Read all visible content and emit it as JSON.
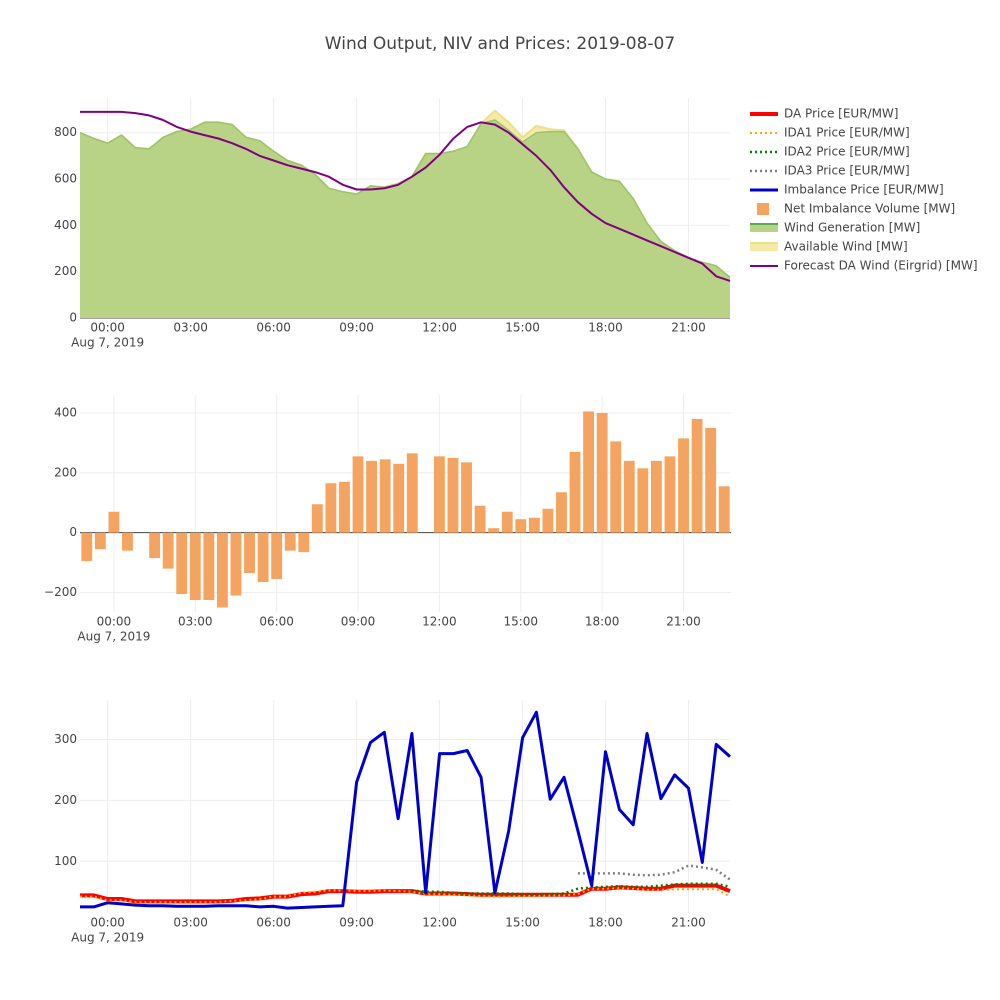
{
  "title": "Wind Output, NIV and Prices: 2019-08-07",
  "chart_data": [
    {
      "type": "area",
      "x": [
        "23:00",
        "23:30",
        "00:00",
        "00:30",
        "01:00",
        "01:30",
        "02:00",
        "02:30",
        "03:00",
        "03:30",
        "04:00",
        "04:30",
        "05:00",
        "05:30",
        "06:00",
        "06:30",
        "07:00",
        "07:30",
        "08:00",
        "08:30",
        "09:00",
        "09:30",
        "10:00",
        "10:30",
        "11:00",
        "11:30",
        "12:00",
        "12:30",
        "13:00",
        "13:30",
        "14:00",
        "14:30",
        "15:00",
        "15:30",
        "16:00",
        "16:30",
        "17:00",
        "17:30",
        "18:00",
        "18:30",
        "19:00",
        "19:30",
        "20:00",
        "20:30",
        "21:00",
        "21:30",
        "22:00",
        "22:30"
      ],
      "xticks": [
        "00:00",
        "03:00",
        "06:00",
        "09:00",
        "12:00",
        "15:00",
        "18:00",
        "21:00"
      ],
      "x_sublabel": "Aug 7, 2019",
      "ylim": [
        0,
        950
      ],
      "yticks": [
        0,
        200,
        400,
        600,
        800
      ],
      "grid": true,
      "series": [
        {
          "name": "Available Wind [MW]",
          "color": "#ece08c",
          "fill_color": "#f3eaa6",
          "fill": true,
          "width": 2,
          "values": [
            800,
            775,
            755,
            790,
            735,
            730,
            780,
            805,
            815,
            845,
            845,
            835,
            780,
            765,
            720,
            680,
            660,
            620,
            560,
            545,
            535,
            570,
            565,
            580,
            610,
            710,
            710,
            720,
            740,
            840,
            895,
            845,
            780,
            830,
            815,
            810,
            730,
            630,
            600,
            590,
            515,
            410,
            330,
            290,
            260,
            240,
            225,
            175
          ]
        },
        {
          "name": "Wind Generation [MW]",
          "color": "#9cc46c",
          "fill_color": "#b8d385",
          "fill": true,
          "width": 1.5,
          "legend_color": "#5aa850",
          "values": [
            800,
            775,
            755,
            790,
            735,
            730,
            780,
            805,
            815,
            845,
            845,
            835,
            780,
            765,
            720,
            680,
            660,
            620,
            560,
            545,
            535,
            570,
            565,
            580,
            610,
            710,
            710,
            720,
            740,
            840,
            855,
            810,
            760,
            800,
            805,
            805,
            730,
            630,
            600,
            590,
            515,
            410,
            330,
            290,
            260,
            240,
            225,
            175
          ]
        },
        {
          "name": "Forecast DA Wind (Eirgrid) [MW]",
          "color": "#800080",
          "width": 2,
          "values": [
            890,
            890,
            890,
            890,
            885,
            875,
            855,
            825,
            805,
            790,
            775,
            755,
            730,
            700,
            680,
            660,
            645,
            630,
            610,
            575,
            555,
            555,
            560,
            575,
            610,
            650,
            705,
            775,
            825,
            845,
            835,
            800,
            750,
            700,
            640,
            565,
            500,
            450,
            410,
            385,
            360,
            335,
            310,
            285,
            260,
            235,
            180,
            160
          ]
        }
      ]
    },
    {
      "type": "bar",
      "x": [
        "23:00",
        "23:30",
        "00:00",
        "00:30",
        "01:00",
        "01:30",
        "02:00",
        "02:30",
        "03:00",
        "03:30",
        "04:00",
        "04:30",
        "05:00",
        "05:30",
        "06:00",
        "06:30",
        "07:00",
        "07:30",
        "08:00",
        "08:30",
        "09:00",
        "09:30",
        "10:00",
        "10:30",
        "11:00",
        "11:30",
        "12:00",
        "12:30",
        "13:00",
        "13:30",
        "14:00",
        "14:30",
        "15:00",
        "15:30",
        "16:00",
        "16:30",
        "17:00",
        "17:30",
        "18:00",
        "18:30",
        "19:00",
        "19:30",
        "20:00",
        "20:30",
        "21:00",
        "21:30",
        "22:00",
        "22:30"
      ],
      "xticks": [
        "00:00",
        "03:00",
        "06:00",
        "09:00",
        "12:00",
        "15:00",
        "18:00",
        "21:00"
      ],
      "x_sublabel": "Aug 7, 2019",
      "ylim": [
        -265,
        460
      ],
      "yticks": [
        {
          "value": -200,
          "label": "−200"
        },
        0,
        200,
        400
      ],
      "grid": true,
      "zeroline": true,
      "series": [
        {
          "name": "Net Imbalance Volume [MW]",
          "color": "#f4a460",
          "values": [
            -95,
            -55,
            70,
            -60,
            null,
            -85,
            -120,
            -205,
            -225,
            -225,
            -250,
            -210,
            -135,
            -165,
            -155,
            -60,
            -65,
            95,
            165,
            170,
            255,
            240,
            245,
            230,
            265,
            null,
            255,
            250,
            235,
            90,
            15,
            70,
            45,
            50,
            80,
            135,
            270,
            405,
            400,
            305,
            240,
            215,
            240,
            255,
            315,
            380,
            350,
            155
          ]
        }
      ]
    },
    {
      "type": "line",
      "x": [
        "23:00",
        "23:30",
        "00:00",
        "00:30",
        "01:00",
        "01:30",
        "02:00",
        "02:30",
        "03:00",
        "03:30",
        "04:00",
        "04:30",
        "05:00",
        "05:30",
        "06:00",
        "06:30",
        "07:00",
        "07:30",
        "08:00",
        "08:30",
        "09:00",
        "09:30",
        "10:00",
        "10:30",
        "11:00",
        "11:30",
        "12:00",
        "12:30",
        "13:00",
        "13:30",
        "14:00",
        "14:30",
        "15:00",
        "15:30",
        "16:00",
        "16:30",
        "17:00",
        "17:30",
        "18:00",
        "18:30",
        "19:00",
        "19:30",
        "20:00",
        "20:30",
        "21:00",
        "21:30",
        "22:00",
        "22:30"
      ],
      "xticks": [
        "00:00",
        "03:00",
        "06:00",
        "09:00",
        "12:00",
        "15:00",
        "18:00",
        "21:00"
      ],
      "x_sublabel": "Aug 7, 2019",
      "ylim": [
        15,
        365
      ],
      "yticks": [
        100,
        200,
        300
      ],
      "grid": true,
      "series": [
        {
          "name": "DA Price [EUR/MW]",
          "color": "#ff0000",
          "width": 4,
          "values": [
            44,
            44,
            38,
            38,
            34,
            34,
            34,
            34,
            34,
            34,
            34,
            35,
            38,
            39,
            42,
            42,
            46,
            47,
            51,
            51,
            50,
            50,
            51,
            51,
            51,
            47,
            47,
            47,
            46,
            45,
            45,
            45,
            45,
            45,
            45,
            45,
            45,
            55,
            55,
            57,
            56,
            55,
            55,
            60,
            60,
            60,
            60,
            51
          ]
        },
        {
          "name": "IDA1 Price [EUR/MW]",
          "color": "#ffa500",
          "width": 2,
          "dash": "dot",
          "values": [
            42,
            42,
            36,
            36,
            33,
            33,
            33,
            33,
            33,
            33,
            33,
            35,
            36,
            38,
            42,
            42,
            48,
            50,
            52,
            52,
            51,
            51,
            52,
            51,
            50,
            46,
            46,
            45,
            44,
            43,
            42,
            42,
            43,
            43,
            44,
            44,
            46,
            55,
            55,
            56,
            55,
            53,
            53,
            54,
            54,
            54,
            54,
            42
          ]
        },
        {
          "name": "IDA2 Price [EUR/MW]",
          "color": "#008000",
          "width": 2.5,
          "dash": "dot",
          "values": [
            null,
            null,
            null,
            null,
            null,
            null,
            null,
            null,
            null,
            null,
            null,
            null,
            null,
            null,
            null,
            null,
            null,
            null,
            null,
            null,
            null,
            null,
            null,
            null,
            52,
            50,
            50,
            48,
            47,
            47,
            47,
            47,
            46,
            46,
            46,
            47,
            55,
            57,
            58,
            59,
            58,
            58,
            60,
            62,
            63,
            63,
            63,
            58
          ]
        },
        {
          "name": "IDA3 Price [EUR/MW]",
          "color": "#808080",
          "width": 2.5,
          "dash": "dot",
          "values": [
            null,
            null,
            null,
            null,
            null,
            null,
            null,
            null,
            null,
            null,
            null,
            null,
            null,
            null,
            null,
            null,
            null,
            null,
            null,
            null,
            null,
            null,
            null,
            null,
            null,
            null,
            null,
            null,
            null,
            null,
            null,
            null,
            null,
            null,
            null,
            null,
            80,
            80,
            80,
            80,
            78,
            77,
            78,
            82,
            93,
            90,
            86,
            70
          ]
        },
        {
          "name": "Imbalance Price [EUR/MW]",
          "color": "#0000cd",
          "width": 3,
          "values": [
            25,
            25,
            32,
            30,
            28,
            27,
            27,
            26,
            26,
            26,
            27,
            27,
            27,
            25,
            26,
            23,
            24,
            25,
            26,
            27,
            230,
            295,
            312,
            170,
            310,
            48,
            277,
            277,
            282,
            238,
            48,
            150,
            303,
            345,
            202,
            238,
            150,
            60,
            280,
            185,
            160,
            310,
            203,
            242,
            220,
            98,
            292,
            272
          ]
        }
      ]
    }
  ]
}
